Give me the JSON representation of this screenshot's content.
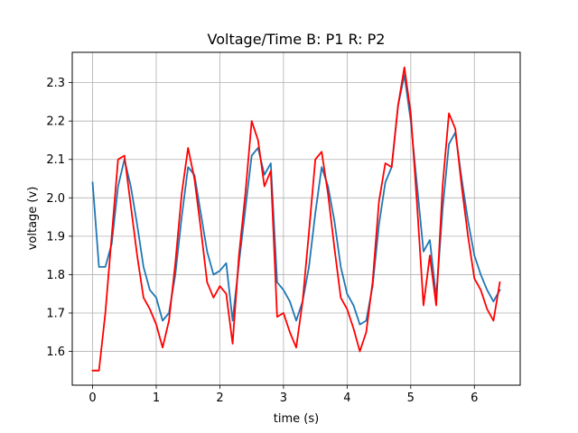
{
  "chart_data": {
    "type": "line",
    "title": "Voltage/Time  B: P1  R: P2",
    "xlabel": "time (s)",
    "ylabel": "voltage (v)",
    "xlim": [
      -0.32,
      6.72
    ],
    "ylim": [
      1.512,
      2.379
    ],
    "xticks": [
      0,
      1,
      2,
      3,
      4,
      5,
      6
    ],
    "yticks": [
      1.6,
      1.7,
      1.8,
      1.9,
      2.0,
      2.1,
      2.2,
      2.3
    ],
    "xtick_labels": [
      "0",
      "1",
      "2",
      "3",
      "4",
      "5",
      "6"
    ],
    "ytick_labels": [
      "1.6",
      "1.7",
      "1.8",
      "1.9",
      "2.0",
      "2.1",
      "2.2",
      "2.3"
    ],
    "grid": true,
    "series": [
      {
        "color": "#1f77b4",
        "x": [
          0.0,
          0.1,
          0.2,
          0.3,
          0.4,
          0.5,
          0.6,
          0.7,
          0.8,
          0.9,
          1.0,
          1.1,
          1.2,
          1.3,
          1.4,
          1.5,
          1.6,
          1.7,
          1.8,
          1.9,
          2.0,
          2.1,
          2.2,
          2.3,
          2.4,
          2.5,
          2.6,
          2.7,
          2.8,
          2.9,
          3.0,
          3.1,
          3.2,
          3.3,
          3.4,
          3.5,
          3.6,
          3.7,
          3.8,
          3.9,
          4.0,
          4.1,
          4.2,
          4.3,
          4.4,
          4.5,
          4.6,
          4.7,
          4.8,
          4.9,
          5.0,
          5.1,
          5.2,
          5.3,
          5.4,
          5.5,
          5.6,
          5.7,
          5.8,
          5.9,
          6.0,
          6.1,
          6.2,
          6.3,
          6.4
        ],
        "y": [
          2.04,
          1.82,
          1.82,
          1.88,
          2.03,
          2.1,
          2.03,
          1.93,
          1.82,
          1.76,
          1.74,
          1.68,
          1.7,
          1.8,
          1.95,
          2.08,
          2.06,
          1.96,
          1.86,
          1.8,
          1.81,
          1.83,
          1.68,
          1.83,
          1.97,
          2.11,
          2.13,
          2.06,
          2.09,
          1.78,
          1.76,
          1.73,
          1.68,
          1.73,
          1.82,
          1.96,
          2.08,
          2.03,
          1.94,
          1.82,
          1.75,
          1.72,
          1.67,
          1.68,
          1.77,
          1.93,
          2.04,
          2.08,
          2.24,
          2.32,
          2.2,
          2.03,
          1.86,
          1.89,
          1.74,
          1.97,
          2.14,
          2.17,
          2.05,
          1.94,
          1.85,
          1.8,
          1.76,
          1.73,
          1.76
        ]
      },
      {
        "color": "#ff0000",
        "x": [
          0.0,
          0.1,
          0.2,
          0.3,
          0.4,
          0.5,
          0.6,
          0.7,
          0.8,
          0.9,
          1.0,
          1.1,
          1.2,
          1.3,
          1.4,
          1.5,
          1.6,
          1.7,
          1.8,
          1.9,
          2.0,
          2.1,
          2.2,
          2.3,
          2.4,
          2.5,
          2.6,
          2.7,
          2.8,
          2.9,
          3.0,
          3.1,
          3.2,
          3.3,
          3.4,
          3.5,
          3.6,
          3.7,
          3.8,
          3.9,
          4.0,
          4.1,
          4.2,
          4.3,
          4.4,
          4.5,
          4.6,
          4.7,
          4.8,
          4.9,
          5.0,
          5.1,
          5.2,
          5.3,
          5.4,
          5.5,
          5.6,
          5.7,
          5.8,
          5.9,
          6.0,
          6.1,
          6.2,
          6.3,
          6.4
        ],
        "y": [
          1.55,
          1.55,
          1.7,
          1.9,
          2.1,
          2.11,
          1.98,
          1.85,
          1.74,
          1.71,
          1.67,
          1.61,
          1.68,
          1.83,
          2.01,
          2.13,
          2.05,
          1.92,
          1.78,
          1.74,
          1.77,
          1.75,
          1.62,
          1.85,
          2.01,
          2.2,
          2.15,
          2.03,
          2.07,
          1.69,
          1.7,
          1.65,
          1.61,
          1.73,
          1.91,
          2.1,
          2.12,
          2.01,
          1.87,
          1.74,
          1.71,
          1.66,
          1.6,
          1.65,
          1.78,
          1.99,
          2.09,
          2.08,
          2.24,
          2.34,
          2.22,
          1.98,
          1.72,
          1.85,
          1.72,
          2.03,
          2.22,
          2.18,
          2.03,
          1.9,
          1.79,
          1.76,
          1.71,
          1.68,
          1.78
        ]
      }
    ]
  }
}
